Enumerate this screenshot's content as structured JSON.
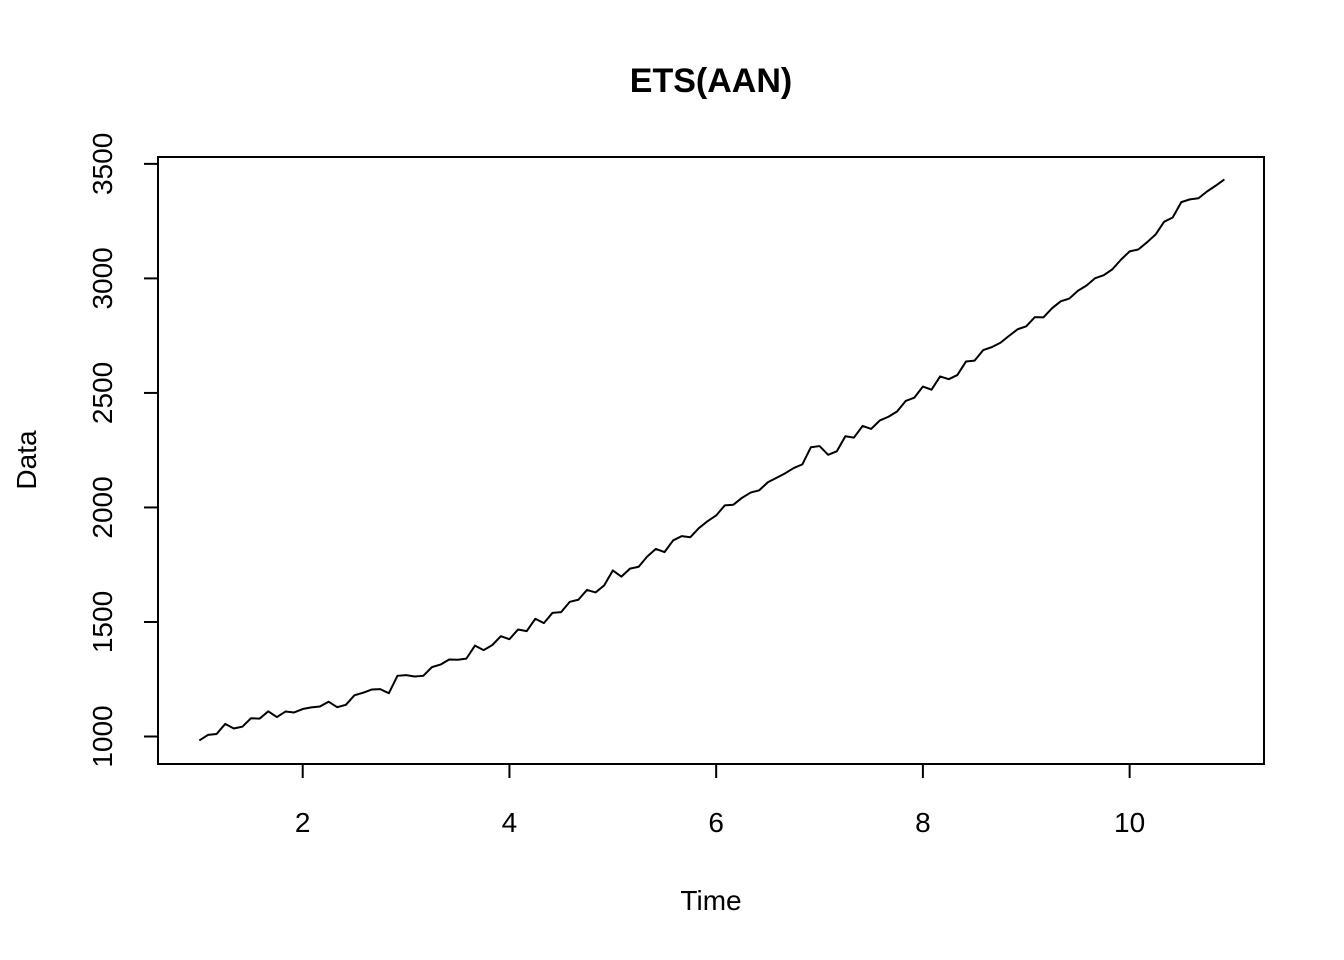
{
  "chart_data": {
    "type": "line",
    "title": "ETS(AAN)",
    "xlabel": "Time",
    "ylabel": "Data",
    "xlim": [
      0.6,
      11.3
    ],
    "ylim": [
      880,
      3530
    ],
    "x_ticks": [
      2,
      4,
      6,
      8,
      10
    ],
    "x_tick_labels": [
      "2",
      "4",
      "6",
      "8",
      "10"
    ],
    "y_ticks": [
      1000,
      1500,
      2000,
      2500,
      3000,
      3500
    ],
    "y_tick_labels": [
      "1000",
      "1500",
      "2000",
      "2500",
      "3000",
      "3500"
    ],
    "grid": false,
    "legend": "none",
    "series": [
      {
        "color": "#000000",
        "x_start": 1,
        "x_step": 0.08333333,
        "values": [
          983,
          1007,
          1011,
          1055,
          1035,
          1043,
          1080,
          1078,
          1110,
          1085,
          1109,
          1105,
          1120,
          1127,
          1131,
          1152,
          1128,
          1138,
          1180,
          1191,
          1205,
          1207,
          1189,
          1265,
          1268,
          1262,
          1265,
          1303,
          1314,
          1336,
          1335,
          1340,
          1397,
          1377,
          1399,
          1438,
          1425,
          1467,
          1460,
          1514,
          1495,
          1540,
          1543,
          1588,
          1597,
          1640,
          1629,
          1660,
          1725,
          1698,
          1733,
          1741,
          1786,
          1819,
          1805,
          1856,
          1875,
          1870,
          1910,
          1940,
          1965,
          2009,
          2012,
          2042,
          2065,
          2075,
          2110,
          2129,
          2149,
          2172,
          2188,
          2263,
          2268,
          2230,
          2245,
          2311,
          2305,
          2356,
          2343,
          2380,
          2396,
          2419,
          2465,
          2479,
          2528,
          2514,
          2572,
          2560,
          2578,
          2637,
          2641,
          2687,
          2700,
          2719,
          2749,
          2778,
          2791,
          2831,
          2830,
          2870,
          2900,
          2912,
          2946,
          2969,
          3001,
          3014,
          3040,
          3082,
          3118,
          3126,
          3157,
          3191,
          3247,
          3266,
          3333,
          3345,
          3350,
          3380,
          3405,
          3432
        ]
      }
    ]
  }
}
